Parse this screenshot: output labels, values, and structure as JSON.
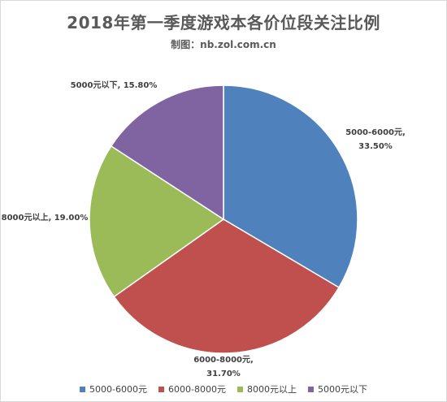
{
  "chart_data": {
    "type": "pie",
    "title": "2018年第一季度游戏本各价位段关注比例",
    "subtitle": "制图：nb.zol.com.cn",
    "slices": [
      {
        "name": "5000-6000元",
        "value": 33.5,
        "label_line1": "5000-6000元,",
        "label_line2": "33.50%",
        "color": "#4F81BD"
      },
      {
        "name": "6000-8000元",
        "value": 31.7,
        "label_line1": "6000-8000元,",
        "label_line2": "31.70%",
        "color": "#C0504D"
      },
      {
        "name": "8000元以上",
        "value": 19.0,
        "label_line1": "8000元以上, 19.00%",
        "label_line2": "",
        "color": "#9BBB59"
      },
      {
        "name": "5000元以下",
        "value": 15.8,
        "label_line1": "5000元以下, 15.80%",
        "label_line2": "",
        "color": "#8064A2"
      }
    ],
    "start_angle": "12 o'clock, clockwise",
    "legend_position": "bottom"
  }
}
